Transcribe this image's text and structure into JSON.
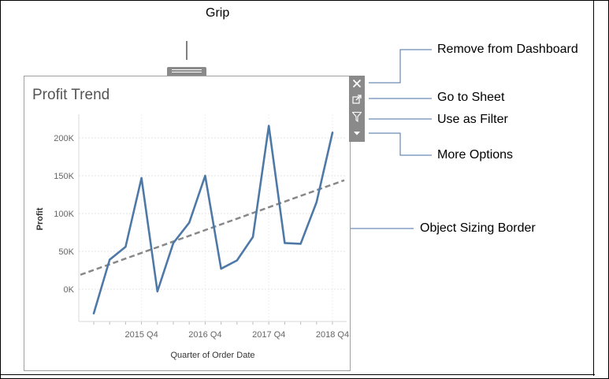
{
  "callouts": {
    "grip": "Grip",
    "remove": "Remove from Dashboard",
    "go_to_sheet": "Go to Sheet",
    "use_as_filter": "Use as Filter",
    "more_options": "More Options",
    "sizing_border": "Object Sizing Border"
  },
  "toolbar": {
    "icons": [
      "close-icon",
      "go-to-sheet-icon",
      "filter-icon",
      "more-options-icon"
    ]
  },
  "sheet": {
    "title": "Profit Trend"
  },
  "chart_data": {
    "type": "line",
    "title": "Profit Trend",
    "xlabel": "Quarter of Order Date",
    "ylabel": "Profit",
    "x_tick_labels": [
      "2015 Q4",
      "2016 Q4",
      "2017 Q4",
      "2018 Q4"
    ],
    "y_tick_labels": [
      "0K",
      "50K",
      "100K",
      "150K",
      "200K"
    ],
    "ylim": [
      -50000,
      225000
    ],
    "grid": true,
    "series": [
      {
        "color": "#4e79a7",
        "x": [
          "2015 Q1",
          "2015 Q2",
          "2015 Q3",
          "2015 Q4",
          "2016 Q1",
          "2016 Q2",
          "2016 Q3",
          "2016 Q4",
          "2017 Q1",
          "2017 Q2",
          "2017 Q3",
          "2017 Q4",
          "2018 Q1",
          "2018 Q2",
          "2018 Q3",
          "2018 Q4"
        ],
        "values": [
          -32000,
          39000,
          56000,
          147000,
          -3000,
          61000,
          88000,
          150000,
          27000,
          38000,
          69000,
          216000,
          61000,
          60000,
          115000,
          207000
        ]
      }
    ],
    "trend_line": {
      "style": "dashed",
      "color": "#888888",
      "start_value": 19000,
      "end_value": 144000
    }
  }
}
